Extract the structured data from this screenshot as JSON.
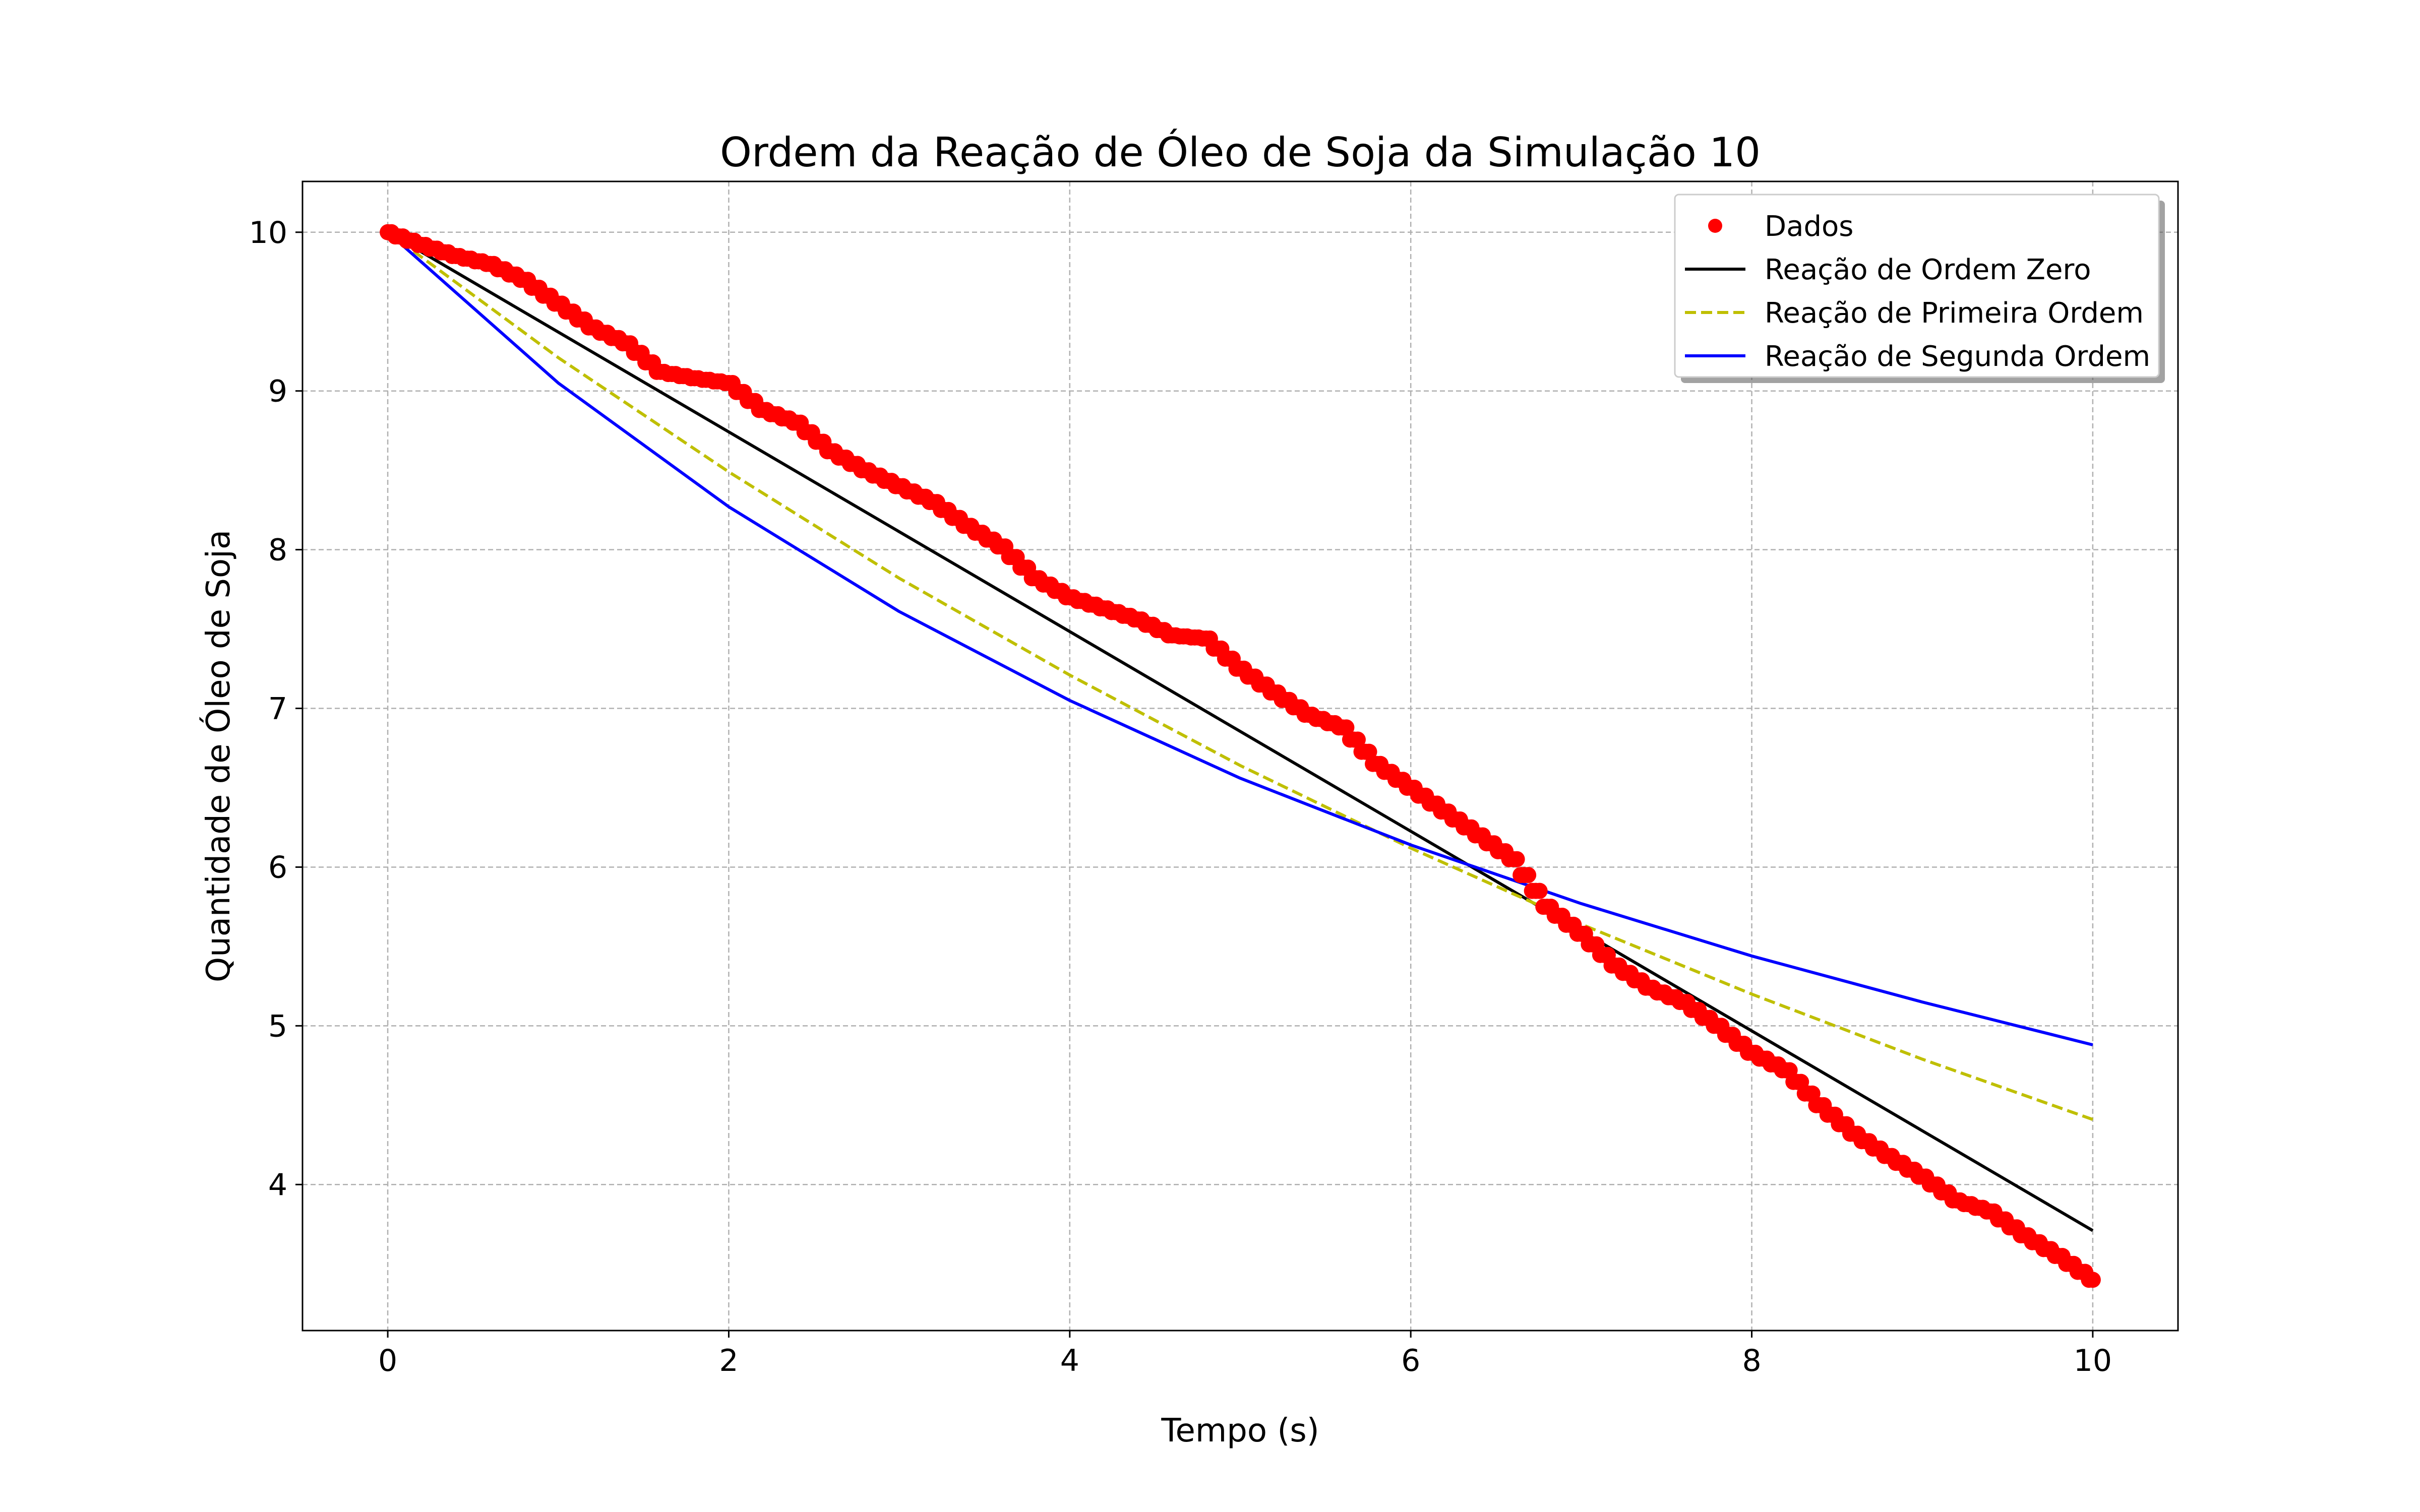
{
  "chart_data": {
    "type": "line",
    "title": "Ordem da Reação de Óleo de Soja da Simulação 10",
    "xlabel": "Tempo (s)",
    "ylabel": "Quantidade de Óleo de Soja",
    "xlim": [
      -0.5,
      10.5
    ],
    "ylim": [
      3.08,
      10.32
    ],
    "xticks": [
      0,
      2,
      4,
      6,
      8,
      10
    ],
    "yticks": [
      4,
      5,
      6,
      7,
      8,
      9,
      10
    ],
    "grid": true,
    "legend_position": "top-right",
    "series": [
      {
        "name": "Dados",
        "kind": "scatter",
        "color": "#ff0000",
        "x": [
          0.0,
          0.2,
          0.4,
          0.6,
          0.8,
          1.0,
          1.2,
          1.4,
          1.6,
          1.8,
          2.0,
          2.2,
          2.4,
          2.6,
          2.8,
          3.0,
          3.2,
          3.4,
          3.6,
          3.8,
          4.0,
          4.2,
          4.4,
          4.6,
          4.8,
          5.0,
          5.2,
          5.4,
          5.6,
          5.8,
          6.0,
          6.2,
          6.4,
          6.6,
          6.8,
          7.0,
          7.2,
          7.4,
          7.6,
          7.8,
          8.0,
          8.2,
          8.4,
          8.6,
          8.8,
          9.0,
          9.2,
          9.4,
          9.6,
          9.8,
          10.0
        ],
        "values": [
          10.0,
          9.92,
          9.85,
          9.8,
          9.7,
          9.55,
          9.4,
          9.3,
          9.12,
          9.08,
          9.05,
          8.88,
          8.8,
          8.62,
          8.5,
          8.4,
          8.3,
          8.15,
          8.02,
          7.82,
          7.7,
          7.63,
          7.56,
          7.46,
          7.44,
          7.25,
          7.1,
          6.96,
          6.88,
          6.65,
          6.5,
          6.35,
          6.2,
          6.05,
          5.75,
          5.58,
          5.38,
          5.24,
          5.15,
          5.0,
          4.83,
          4.72,
          4.5,
          4.32,
          4.18,
          4.05,
          3.9,
          3.83,
          3.68,
          3.55,
          3.4
        ]
      },
      {
        "name": "Reação de Ordem Zero",
        "kind": "line",
        "color": "#000000",
        "dash": "solid",
        "x": [
          0,
          10
        ],
        "values": [
          10.0,
          3.71
        ]
      },
      {
        "name": "Reação de Primeira Ordem",
        "kind": "line",
        "color": "#bfbf00",
        "dash": "dashed",
        "x": [
          0,
          1,
          2,
          3,
          4,
          5,
          6,
          7,
          8,
          9,
          10
        ],
        "values": [
          10.0,
          9.21,
          8.49,
          7.82,
          7.21,
          6.64,
          6.12,
          5.64,
          5.2,
          4.79,
          4.41
        ]
      },
      {
        "name": "Reação de Segunda Ordem",
        "kind": "line",
        "color": "#0000ff",
        "dash": "solid",
        "x": [
          0,
          1,
          2,
          3,
          4,
          5,
          6,
          7,
          8,
          9,
          10
        ],
        "values": [
          10.0,
          9.05,
          8.27,
          7.61,
          7.05,
          6.56,
          6.14,
          5.77,
          5.44,
          5.15,
          4.88
        ]
      }
    ]
  }
}
